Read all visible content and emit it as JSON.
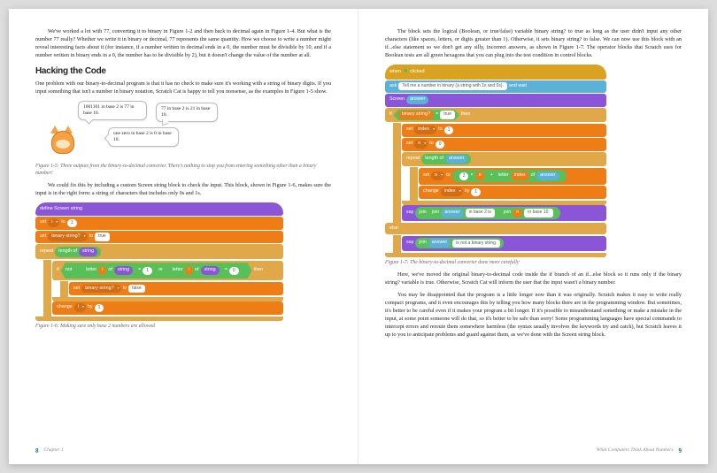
{
  "left": {
    "para1": "We've worked a lot with 77, converting it to binary in Figure 1-2 and then back to decimal again in Figure 1-4. But what is the number 77 really? Whether we write it in binary or decimal, 77 represents the same quantity. How we choose to write a number might reveal interesting facts about it (for instance, if a number written in decimal ends in a 0, the number must be divisible by 10, and if a number written in binary ends in a 0, the number has to be divisible by 2), but it doesn't change the value of the number at all.",
    "heading": "Hacking the Code",
    "para2": "One problem with our binary-to-decimal program is that it has no check to make sure it's working with a string of binary digits. If you input something that isn't a number in binary notation, Scratch Cat is happy to tell you nonsense, as the examples in Figure 1-5 show.",
    "bubble1": "1001101 in base 2 is 77 in base 10.",
    "bubble2": "77 in base 2 is 21 in base 10.",
    "bubble3": "one zero in base 2 is 0 in base 10.",
    "cap15": "Figure 1-5: Three outputs from the binary-to-decimal converter. There's nothing to stop you from entering something other than a binary number!",
    "para3": "We could fix this by including a custom Screen string block to check the input. This block, shown in Figure 1-6, makes sure the input is in the right form: a string of characters that includes only 0s and 1s.",
    "cap16": "Figure 1-6: Making sure only base 2 numbers are allowed",
    "footer_num": "8",
    "footer_label": "Chapter 1"
  },
  "right": {
    "para1": "The block sets the logical (Boolean, or true/false) variable binary string? to true as long as the user didn't input any other characters (like spaces, letters, or digits greater than 1). Otherwise, it sets binary string? to false. We can now use this block with an if...else statement so we don't get any silly, incorrect answers, as shown in Figure 1-7. The operator blocks that Scratch uses for Boolean tests are all green hexagons that you can plug into the test condition in control blocks.",
    "cap17": "Figure 1-7: The binary-to-decimal converter done more carefully",
    "para2": "Here, we've moved the original binary-to-decimal code inside the if branch of an if...else block so it runs only if the binary string? variable is true. Otherwise, Scratch Cat will inform the user that the input wasn't a binary number.",
    "para3": "You may be disappointed that the program is a little longer now than it was originally. Scratch makes it easy to write really compact programs, and it even encourages this by telling you how many blocks there are in the programming window. But sometimes, it's better to be careful even if it makes your program a bit longer. If it's possible to misunderstand something or make a mistake in the input, at some point someone will do that, so it's better to be safe than sorry! Some programming languages have special commands to intercept errors and reroute them somewhere harmless (the syntax usually involves the keywords try and catch), but Scratch leaves it up to you to anticipate problems and guard against them, as we've done with the Screen string block.",
    "footer_label": "What Computers Think About Numbers",
    "footer_num": "9"
  },
  "blocks": {
    "define_screen": "define   Screen   string",
    "set_i_1": "set",
    "i": "i",
    "to": "to",
    "one": "1",
    "binary_string": "binary string?",
    "true": "true",
    "false": "false",
    "repeat": "repeat",
    "length_of": "length of",
    "string": "string",
    "if": "if",
    "then": "then",
    "else": "else",
    "not": "not",
    "letter": "letter",
    "of": "of",
    "or": "or",
    "eq": "=",
    "zero": "0",
    "change": "change",
    "by": "by",
    "when_clicked": "when",
    "clicked": "clicked",
    "ask": "ask",
    "ask_text": "Tell me a number in binary (a string with 1s and 0s).",
    "and_wait": "and wait",
    "screen": "Screen",
    "answer": "answer",
    "index": "index",
    "n": "n",
    "two": "2",
    "times": "×",
    "plus": "+",
    "say": "say",
    "join": "join",
    "in_base_2_is": " in base 2 is ",
    "in_base_10": " in base 10.",
    "not_binary": " is not a binary string."
  },
  "colors": {
    "events": "#d9a220",
    "control": "#e1a84a",
    "data": "#ee7d16",
    "operators": "#59c059",
    "sensing": "#5cb1d6",
    "looks": "#8a55d7",
    "define": "#8a55d7"
  }
}
